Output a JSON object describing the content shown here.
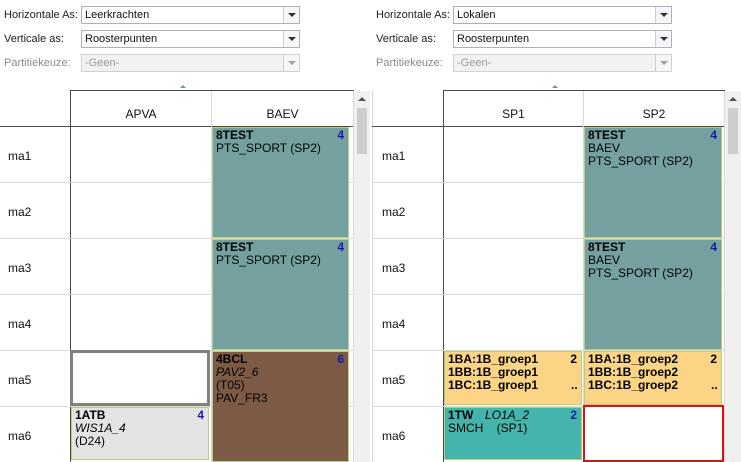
{
  "left_panel": {
    "horizontal_label": "Horizontale As:",
    "horizontal_value": "Leerkrachten",
    "vertical_label": "Verticale as:",
    "vertical_value": "Roosterpunten",
    "partition_label": "Partitiekeuze:",
    "partition_value": "-Geen-",
    "columns": [
      "APVA",
      "BAEV"
    ]
  },
  "right_panel": {
    "horizontal_label": "Horizontale As:",
    "horizontal_value": "Lokalen",
    "vertical_label": "Verticale as:",
    "vertical_value": "Roosterpunten",
    "partition_label": "Partitiekeuze:",
    "partition_value": "-Geen-",
    "columns": [
      "SP1",
      "SP2"
    ]
  },
  "rows": [
    "ma1",
    "ma2",
    "ma3",
    "ma4",
    "ma5",
    "ma6"
  ],
  "left_cells": {
    "baev_ma1": {
      "title": "8TEST",
      "count": "4",
      "line1": "PTS_SPORT (SP2)"
    },
    "baev_ma3": {
      "title": "8TEST",
      "count": "4",
      "line1": "PTS_SPORT (SP2)"
    },
    "baev_ma5": {
      "title": "4BCL",
      "count": "6",
      "line1": "PAV2_6",
      "line2": "(T05)",
      "line3": "PAV_FR3"
    },
    "apva_ma6": {
      "title": "1ATB",
      "count": "4",
      "line1": "WIS1A_4",
      "line2": "(D24)"
    }
  },
  "right_cells": {
    "sp2_ma1": {
      "title": "8TEST",
      "count": "4",
      "line1": "BAEV",
      "line2": "PTS_SPORT (SP2)"
    },
    "sp2_ma3": {
      "title": "8TEST",
      "count": "4",
      "line1": "BAEV",
      "line2": "PTS_SPORT (SP2)"
    },
    "sp1_ma5": {
      "line1": "1BA:1B_groep1",
      "count": "2",
      "line2": "1BB:1B_groep1",
      "line3": "1BC:1B_groep1",
      "more": ".."
    },
    "sp2_ma5": {
      "line1": "1BA:1B_groep2",
      "count": "2",
      "line2": "1BB:1B_groep2",
      "line3": "1BC:1B_groep2",
      "more": ".."
    },
    "sp1_ma6": {
      "title": "1TW",
      "sub": "LO1A_2",
      "count": "2",
      "line1": "SMCH    (SP1)"
    }
  },
  "colors": {
    "teal": "#74a1a0",
    "brown": "#7d5a46",
    "orange": "#fcd486",
    "cyan": "#43b5ac",
    "count": "#1a1aa6",
    "selection_red": "#dd1111"
  }
}
